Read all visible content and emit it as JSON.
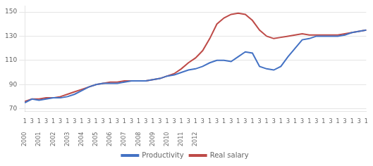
{
  "chart_data": {
    "type": "line",
    "categories": [
      "1",
      "3",
      "1",
      "3",
      "1",
      "3",
      "1",
      "3",
      "1",
      "3",
      "1",
      "3",
      "1",
      "3",
      "1",
      "3",
      "1",
      "3",
      "1",
      "3",
      "1",
      "3",
      "1",
      "3",
      "1",
      "3",
      "1",
      "3",
      "1",
      "3",
      "1",
      "3",
      "1",
      "3",
      "1",
      "3",
      "1",
      "3",
      "1",
      "3",
      "1",
      "3",
      "1",
      "3",
      "1",
      "3",
      "1",
      "3",
      "1"
    ],
    "year_labels": [
      "2000",
      null,
      "2001",
      null,
      "2002",
      null,
      "2003",
      null,
      "2004",
      null,
      "2005",
      null,
      "2006",
      null,
      "2007",
      null,
      "2008",
      null,
      "2009",
      null,
      "2010",
      null,
      "2011",
      null,
      "2012",
      null,
      null,
      null,
      null,
      null,
      null,
      null,
      null,
      null,
      null,
      null,
      null,
      null,
      null,
      null,
      null,
      null,
      null,
      null,
      null,
      null,
      null,
      null,
      null
    ],
    "series": [
      {
        "name": "Productivity",
        "color": "#4472c4",
        "values": [
          75,
          78,
          77,
          78,
          79,
          79,
          80,
          82,
          85,
          88,
          90,
          91,
          91,
          91,
          92,
          93,
          93,
          93,
          94,
          95,
          97,
          98,
          100,
          102,
          103,
          105,
          108,
          110,
          110,
          109,
          113,
          117,
          116,
          105,
          103,
          102,
          105,
          113,
          120,
          127,
          128,
          130,
          130,
          130,
          130,
          131,
          133,
          134,
          135
        ]
      },
      {
        "name": "Real salary",
        "color": "#be4b48",
        "values": [
          76,
          78,
          78,
          79,
          79,
          80,
          82,
          84,
          86,
          88,
          90,
          91,
          92,
          92,
          93,
          93,
          93,
          93,
          94,
          95,
          97,
          99,
          103,
          108,
          112,
          118,
          128,
          140,
          145,
          148,
          149,
          148,
          143,
          135,
          130,
          128,
          129,
          130,
          131,
          132,
          131,
          131,
          131,
          131,
          131,
          132,
          133,
          134,
          135
        ]
      }
    ],
    "ylim": [
      68,
      155
    ],
    "yticks": [
      70,
      90,
      110,
      130,
      150
    ],
    "grid": true,
    "legend": "bottom"
  }
}
